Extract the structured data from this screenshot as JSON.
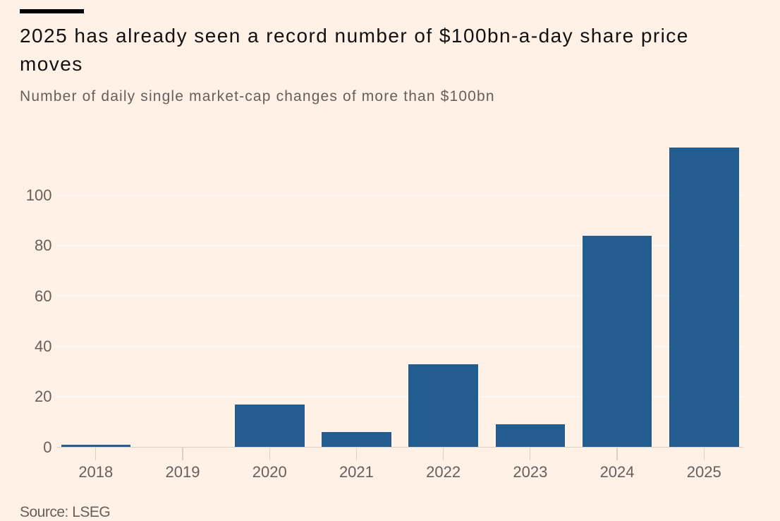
{
  "header": {
    "title": "2025 has already seen a record number of $100bn-a-day share price moves",
    "subtitle": "Number of daily single market-cap changes of more than $100bn"
  },
  "footer": {
    "source": "Source: LSEG"
  },
  "colors": {
    "background": "#FFF1E5",
    "bar": "#235D8F",
    "title_text": "#121110",
    "secondary_text": "#66605C"
  },
  "chart_data": {
    "type": "bar",
    "title": "2025 has already seen a record number of $100bn-a-day share price moves",
    "subtitle": "Number of daily single market-cap changes of more than $100bn",
    "source": "Source: LSEG",
    "categories": [
      "2018",
      "2019",
      "2020",
      "2021",
      "2022",
      "2023",
      "2024",
      "2025"
    ],
    "values": [
      1,
      0,
      17,
      6,
      33,
      9,
      84,
      119
    ],
    "xlabel": "",
    "ylabel": "",
    "yticks": [
      0,
      20,
      40,
      60,
      80,
      100
    ],
    "ylim": [
      0,
      120
    ],
    "grid": "horizontal",
    "legend": "none",
    "bar_color": "#235D8F",
    "background_color": "#FFF1E5"
  }
}
